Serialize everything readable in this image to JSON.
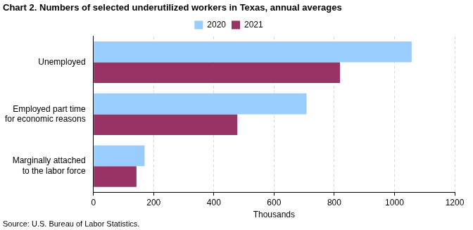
{
  "chart_data": {
    "type": "bar",
    "orientation": "horizontal",
    "title": "Chart 2. Numbers of selected underutilized workers in Texas, annual averages",
    "source": "Source: U.S. Bureau of Labor Statistics.",
    "x_label": "Thousands",
    "categories": [
      "Unemployed",
      "Employed part time for economic reasons",
      "Marginally attached to the labor force"
    ],
    "series": [
      {
        "name": "2020",
        "color": "#99ccff",
        "values": [
          1057,
          708,
          170
        ]
      },
      {
        "name": "2021",
        "color": "#993366",
        "values": [
          819,
          478,
          143
        ]
      }
    ],
    "xlim": [
      0,
      1200
    ],
    "xticks": [
      0,
      200,
      400,
      600,
      800,
      1000,
      1200
    ],
    "grid": true,
    "legend": "top"
  }
}
